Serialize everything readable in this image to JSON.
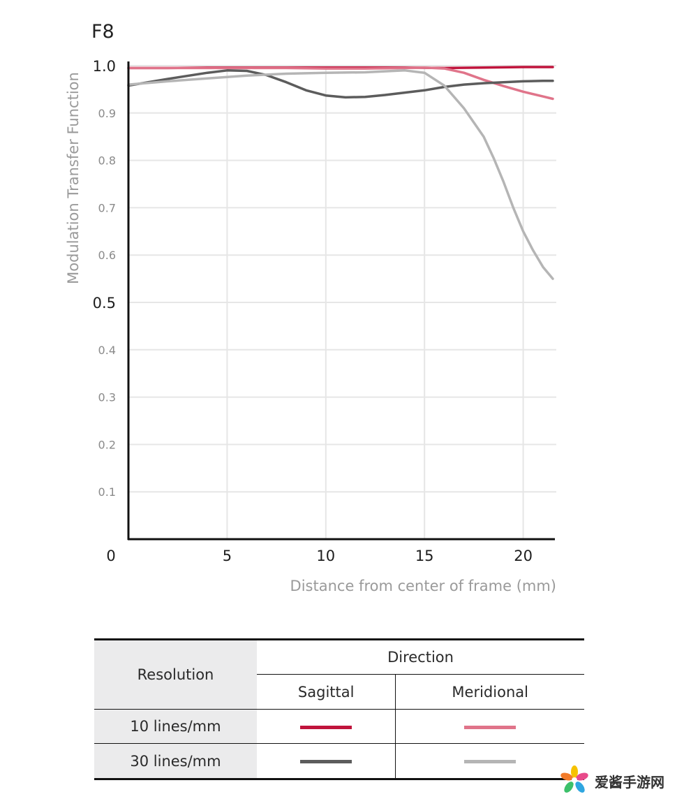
{
  "chart_data": {
    "type": "line",
    "title": "F8",
    "xlabel": "Distance from center of frame (mm)",
    "ylabel": "Modulation Transfer Function",
    "xlim": [
      0,
      21.5
    ],
    "ylim": [
      0,
      1.0
    ],
    "x_ticks": [
      "0",
      "5",
      "10",
      "15",
      "20"
    ],
    "y_ticks": [
      "1.0",
      "0.9",
      "0.8",
      "0.7",
      "0.6",
      "0.5",
      "0.4",
      "0.3",
      "0.2",
      "0.1"
    ],
    "grid": true,
    "series": [
      {
        "name": "10 lines/mm Sagittal",
        "color": "#c0143c",
        "x": [
          0,
          2,
          4,
          6,
          8,
          10,
          12,
          14,
          16,
          18,
          20,
          21.5
        ],
        "y": [
          0.995,
          0.995,
          0.996,
          0.996,
          0.996,
          0.996,
          0.996,
          0.996,
          0.995,
          0.996,
          0.997,
          0.997
        ]
      },
      {
        "name": "10 lines/mm Meridional",
        "color": "#e0748a",
        "x": [
          0,
          2,
          4,
          6,
          8,
          10,
          12,
          14,
          15,
          16,
          17,
          18,
          19,
          20,
          21,
          21.5
        ],
        "y": [
          0.995,
          0.995,
          0.995,
          0.995,
          0.995,
          0.994,
          0.994,
          0.995,
          0.996,
          0.994,
          0.985,
          0.97,
          0.957,
          0.945,
          0.935,
          0.93
        ]
      },
      {
        "name": "30 lines/mm Sagittal",
        "color": "#5c5c5c",
        "x": [
          0,
          2,
          4,
          5,
          6,
          7,
          8,
          9,
          10,
          11,
          12,
          13,
          14,
          15,
          16,
          17,
          18,
          19,
          20,
          21,
          21.5
        ],
        "y": [
          0.958,
          0.972,
          0.985,
          0.99,
          0.989,
          0.98,
          0.965,
          0.948,
          0.937,
          0.933,
          0.934,
          0.938,
          0.943,
          0.948,
          0.955,
          0.96,
          0.963,
          0.965,
          0.967,
          0.968,
          0.968
        ]
      },
      {
        "name": "30 lines/mm Meridional",
        "color": "#b5b5b5",
        "x": [
          0,
          2,
          4,
          6,
          8,
          10,
          12,
          13,
          14,
          15,
          16,
          17,
          18,
          18.5,
          19,
          19.5,
          20,
          20.5,
          21,
          21.5
        ],
        "y": [
          0.96,
          0.967,
          0.973,
          0.979,
          0.983,
          0.985,
          0.986,
          0.988,
          0.99,
          0.985,
          0.958,
          0.91,
          0.85,
          0.805,
          0.755,
          0.7,
          0.65,
          0.61,
          0.575,
          0.55
        ]
      }
    ]
  },
  "legend": {
    "resolution_header": "Resolution",
    "direction_header": "Direction",
    "sagittal_label": "Sagittal",
    "meridional_label": "Meridional",
    "rows": [
      {
        "label": "10 lines/mm",
        "sagittal_color": "#c0143c",
        "meridional_color": "#e0748a"
      },
      {
        "label": "30 lines/mm",
        "sagittal_color": "#5c5c5c",
        "meridional_color": "#b5b5b5"
      }
    ]
  },
  "watermark": {
    "text": "爱酱手游网",
    "logo_icon": "pinwheel-flower-icon"
  }
}
